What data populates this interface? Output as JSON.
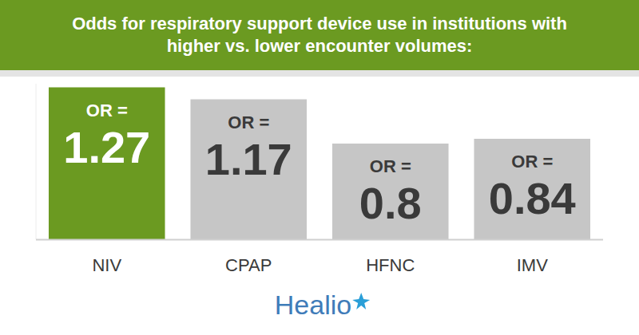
{
  "chart_data": {
    "type": "bar",
    "title": "Odds for respiratory support device use in institutions with higher vs. lower encounter volumes:",
    "categories": [
      "NIV",
      "CPAP",
      "HFNC",
      "IMV"
    ],
    "values": [
      1.27,
      1.17,
      0.8,
      0.84
    ],
    "value_labels": [
      "OR = 1.27",
      "OR = 1.17",
      "OR = 0.8",
      "OR = 0.84"
    ],
    "colors": [
      "#6b9a21",
      "#c6c6c6",
      "#c6c6c6",
      "#c6c6c6"
    ],
    "ylim": [
      0,
      1.3
    ],
    "yticks": [],
    "grid": false,
    "data_labels": true,
    "tick_labels": "x",
    "annotations": [
      "Healio"
    ]
  }
}
